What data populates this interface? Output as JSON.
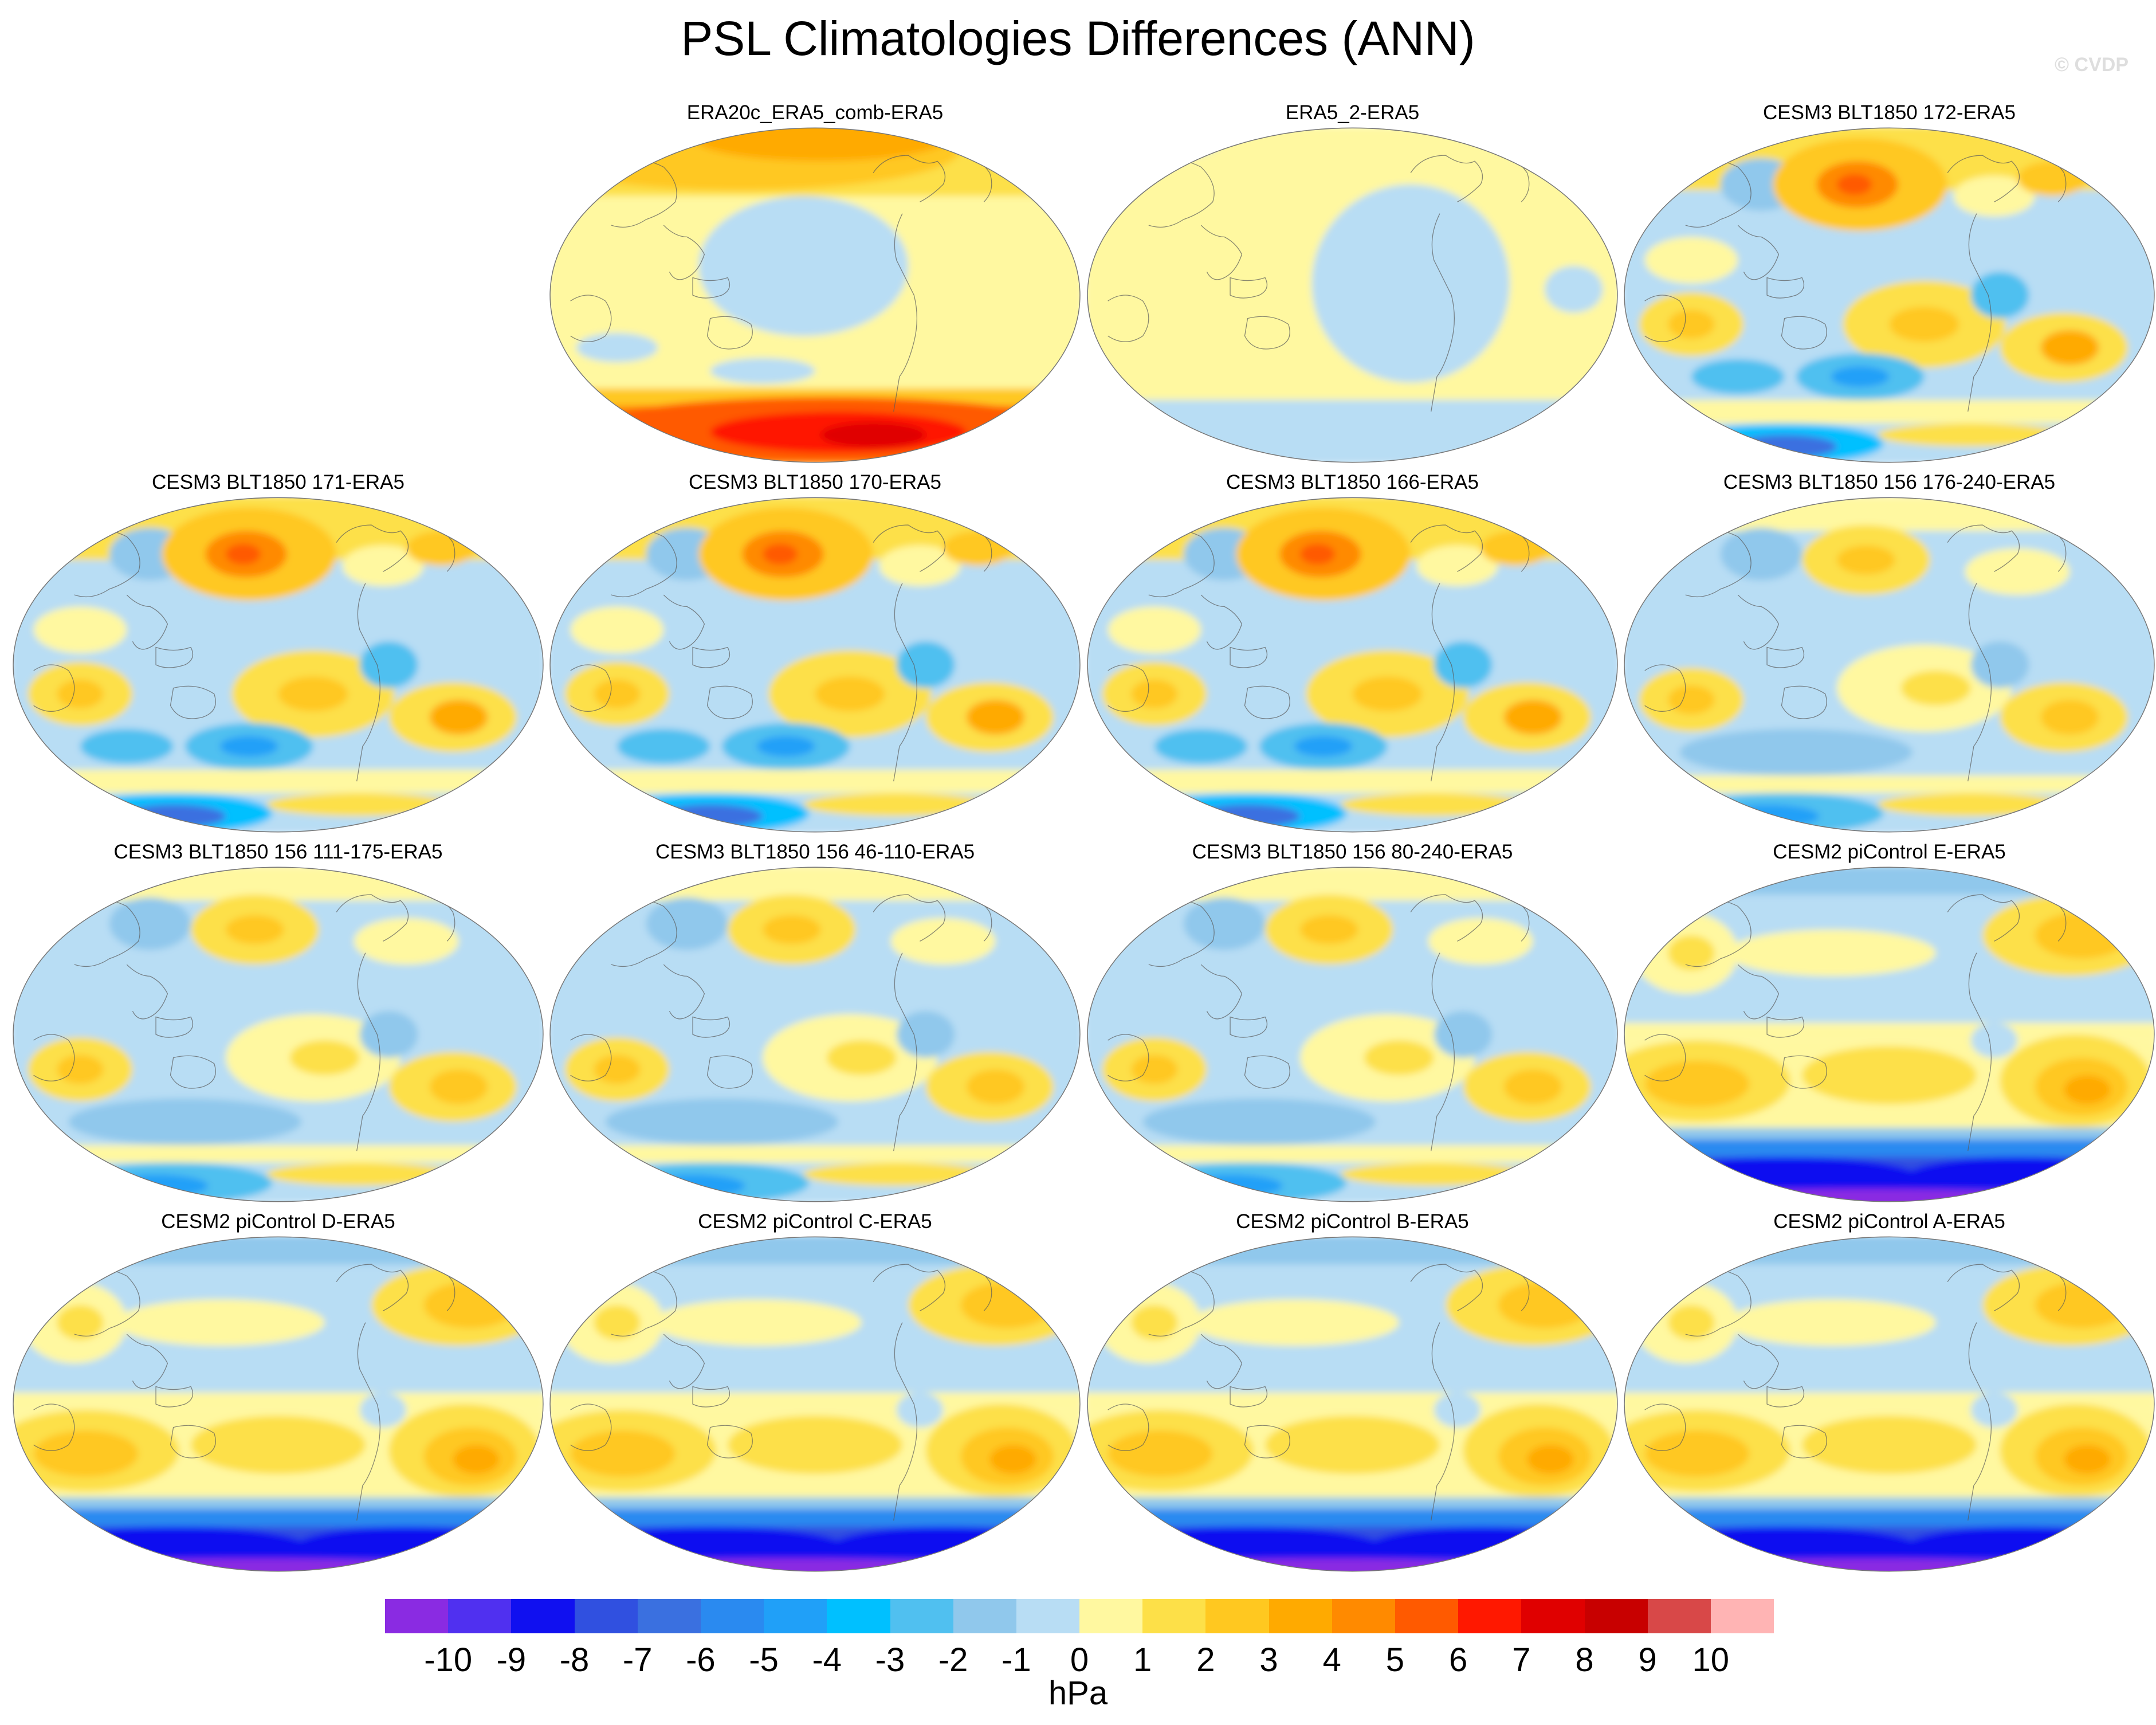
{
  "title": "PSL Climatologies Differences (ANN)",
  "watermark": "© CVDP",
  "units": "hPa",
  "colorbar": {
    "colors": [
      "#8a2be2",
      "#5030f0",
      "#1010f0",
      "#3050e0",
      "#3a70e0",
      "#2a8af0",
      "#20a0f8",
      "#00c0ff",
      "#50c0f0",
      "#90c8ec",
      "#b8ddf4",
      "#fff8a0",
      "#fde048",
      "#ffc820",
      "#ffaa00",
      "#ff8a00",
      "#ff5a00",
      "#ff1800",
      "#e00000",
      "#c80000",
      "#d84848",
      "#ffb4b4"
    ],
    "labels": [
      "-10",
      "-9",
      "-8",
      "-7",
      "-6",
      "-5",
      "-4",
      "-3",
      "-2",
      "-1",
      "0",
      "1",
      "2",
      "3",
      "4",
      "5",
      "6",
      "7",
      "8",
      "9",
      "10"
    ]
  },
  "panels": [
    {
      "id": "p1",
      "title": "ERA20c_ERA5_comb-ERA5",
      "style": "era20c"
    },
    {
      "id": "p2",
      "title": "ERA5_2-ERA5",
      "style": "era5"
    },
    {
      "id": "p3",
      "title": "CESM3 BLT1850 172-ERA5",
      "style": "blt"
    },
    {
      "id": "p4",
      "title": "CESM3 BLT1850 171-ERA5",
      "style": "blt"
    },
    {
      "id": "p5",
      "title": "CESM3 BLT1850 170-ERA5",
      "style": "blt"
    },
    {
      "id": "p6",
      "title": "CESM3 BLT1850 166-ERA5",
      "style": "blt"
    },
    {
      "id": "p7",
      "title": "CESM3 BLT1850 156 176-240-ERA5",
      "style": "blt156"
    },
    {
      "id": "p8",
      "title": "CESM3 BLT1850 156 111-175-ERA5",
      "style": "blt156"
    },
    {
      "id": "p9",
      "title": "CESM3 BLT1850 156 46-110-ERA5",
      "style": "blt156"
    },
    {
      "id": "p10",
      "title": "CESM3 BLT1850 156 80-240-ERA5",
      "style": "blt156"
    },
    {
      "id": "p11",
      "title": "CESM2 piControl E-ERA5",
      "style": "cesm2"
    },
    {
      "id": "p12",
      "title": "CESM2 piControl D-ERA5",
      "style": "cesm2"
    },
    {
      "id": "p13",
      "title": "CESM2 piControl C-ERA5",
      "style": "cesm2"
    },
    {
      "id": "p14",
      "title": "CESM2 piControl B-ERA5",
      "style": "cesm2"
    },
    {
      "id": "p15",
      "title": "CESM2 piControl A-ERA5",
      "style": "cesm2"
    }
  ]
}
